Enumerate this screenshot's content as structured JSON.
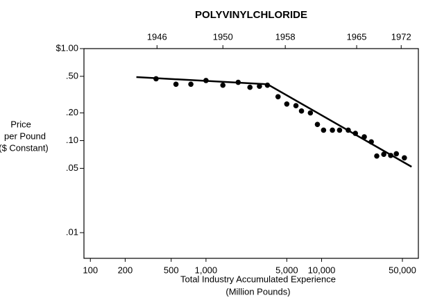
{
  "chart_data": {
    "type": "scatter",
    "title": "POLYVINYLCHLORIDE",
    "ylabel": [
      "Price",
      "per Pound",
      "($ Constant)"
    ],
    "xlabel": [
      "Total Industry Accumulated Experience",
      "(Million Pounds)"
    ],
    "xlog": true,
    "ylog": true,
    "color": "#000000",
    "x": [
      370,
      550,
      740,
      1000,
      1400,
      1900,
      2400,
      2900,
      3400,
      4200,
      5000,
      6000,
      6700,
      8000,
      9200,
      10400,
      12400,
      14300,
      17000,
      19600,
      23400,
      26900,
      30000,
      34500,
      39600,
      44300,
      52000
    ],
    "values": [
      0.47,
      0.41,
      0.41,
      0.45,
      0.4,
      0.43,
      0.38,
      0.39,
      0.4,
      0.3,
      0.25,
      0.24,
      0.21,
      0.2,
      0.15,
      0.13,
      0.13,
      0.13,
      0.13,
      0.12,
      0.11,
      0.097,
      0.068,
      0.071,
      0.069,
      0.072,
      0.065
    ],
    "trend": {
      "x": [
        250,
        3400,
        60000
      ],
      "values": [
        0.49,
        0.41,
        0.052
      ]
    },
    "xlim": [
      88,
      68700
    ],
    "ylim": [
      0.00526,
      1
    ],
    "xticks": [
      100,
      200,
      500,
      {
        "value": 1000,
        "label": "1,000"
      },
      {
        "value": 5000,
        "label": "5,000"
      },
      {
        "value": 10000,
        "label": "10,000"
      },
      {
        "value": 50000,
        "label": "50,000"
      }
    ],
    "yticks": [
      {
        "value": 1,
        "label": "$1.00"
      },
      {
        "value": 0.5,
        "label": ".50"
      },
      {
        "value": 0.2,
        "label": ".20"
      },
      {
        "value": 0.1,
        "label": ".10"
      },
      {
        "value": 0.05,
        "label": ".05"
      },
      {
        "value": 0.01,
        "label": ".01"
      }
    ],
    "x2ticks": [
      {
        "value": 377,
        "label": "1946"
      },
      {
        "value": 1400,
        "label": "1950"
      },
      {
        "value": 4850,
        "label": "1958"
      },
      {
        "value": 20100,
        "label": "1965"
      },
      {
        "value": 48800,
        "label": "1972"
      }
    ]
  }
}
